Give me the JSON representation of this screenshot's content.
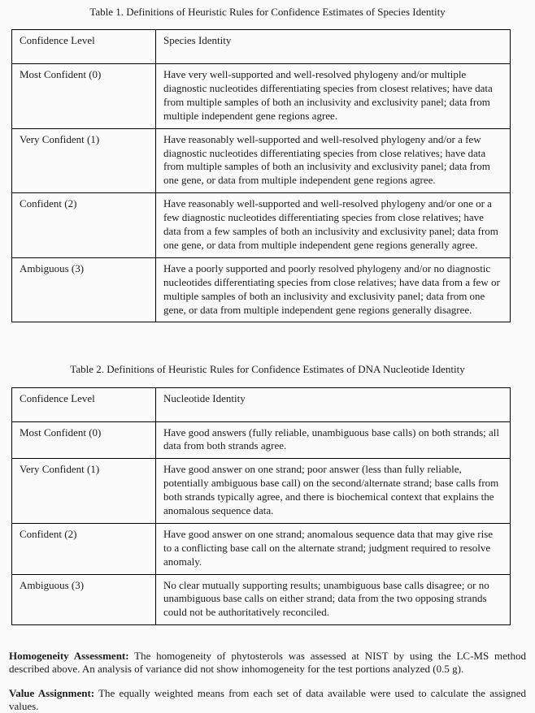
{
  "tables": [
    {
      "title": "Table 1.  Definitions of Heuristic Rules for Confidence Estimates of Species Identity",
      "columns": [
        "Confidence Level",
        "Species Identity"
      ],
      "rows": [
        {
          "level": "Most Confident (0)",
          "definition": "Have very well-supported and well-resolved phylogeny and/or multiple diagnostic nucleotides differentiating species from closest relatives; have data from multiple samples of both an inclusivity and exclusivity panel; data from multiple independent gene regions agree."
        },
        {
          "level": "Very Confident (1)",
          "definition": "Have reasonably well-supported and well-resolved phylogeny and/or a few diagnostic nucleotides differentiating species from close relatives; have data from multiple samples of both an inclusivity and exclusivity panel; data from one gene, or data from multiple independent gene regions agree."
        },
        {
          "level": "Confident (2)",
          "definition": "Have reasonably well-supported and well-resolved phylogeny and/or one or a few diagnostic nucleotides differentiating species from close relatives; have data from a few samples of both an inclusivity and exclusivity panel; data from one gene, or data from multiple independent gene regions generally agree."
        },
        {
          "level": "Ambiguous (3)",
          "definition": "Have a poorly supported and poorly resolved phylogeny and/or no diagnostic nucleotides differentiating species from close relatives; have data from a few or multiple samples of both an inclusivity and exclusivity panel; data from one gene, or data from multiple independent gene regions generally disagree."
        }
      ]
    },
    {
      "title": "Table 2.  Definitions of Heuristic Rules for Confidence Estimates of DNA Nucleotide Identity",
      "columns": [
        "Confidence Level",
        "Nucleotide Identity"
      ],
      "rows": [
        {
          "level": "Most Confident (0)",
          "definition": "Have good answers (fully reliable, unambiguous base calls) on both strands; all data from both strands agree."
        },
        {
          "level": "Very Confident (1)",
          "definition": "Have good answer on one strand; poor answer (less than fully reliable, potentially ambiguous base call) on the second/alternate strand; base calls from both strands typically agree, and there is biochemical context that explains the anomalous sequence data."
        },
        {
          "level": "Confident (2)",
          "definition": "Have good answer on one strand; anomalous sequence data that may give rise to a conflicting base call on the alternate strand; judgment required to resolve anomaly."
        },
        {
          "level": "Ambiguous (3)",
          "definition": "No clear mutually supporting results; unambiguous base calls disagree; or no unambiguous base calls on either strand; data from the two opposing strands could not be authoritatively reconciled."
        }
      ]
    }
  ],
  "paragraphs": [
    {
      "label": "Homogeneity Assessment:",
      "text": "The homogeneity of phytosterols was assessed at NIST by using the LC-MS method described above.  An analysis of variance did not show inhomogeneity for the test portions analyzed (0.5 g)."
    },
    {
      "label": "Value Assignment:",
      "text": "The equally weighted means from each set of data available were used to calculate the assigned values."
    }
  ]
}
